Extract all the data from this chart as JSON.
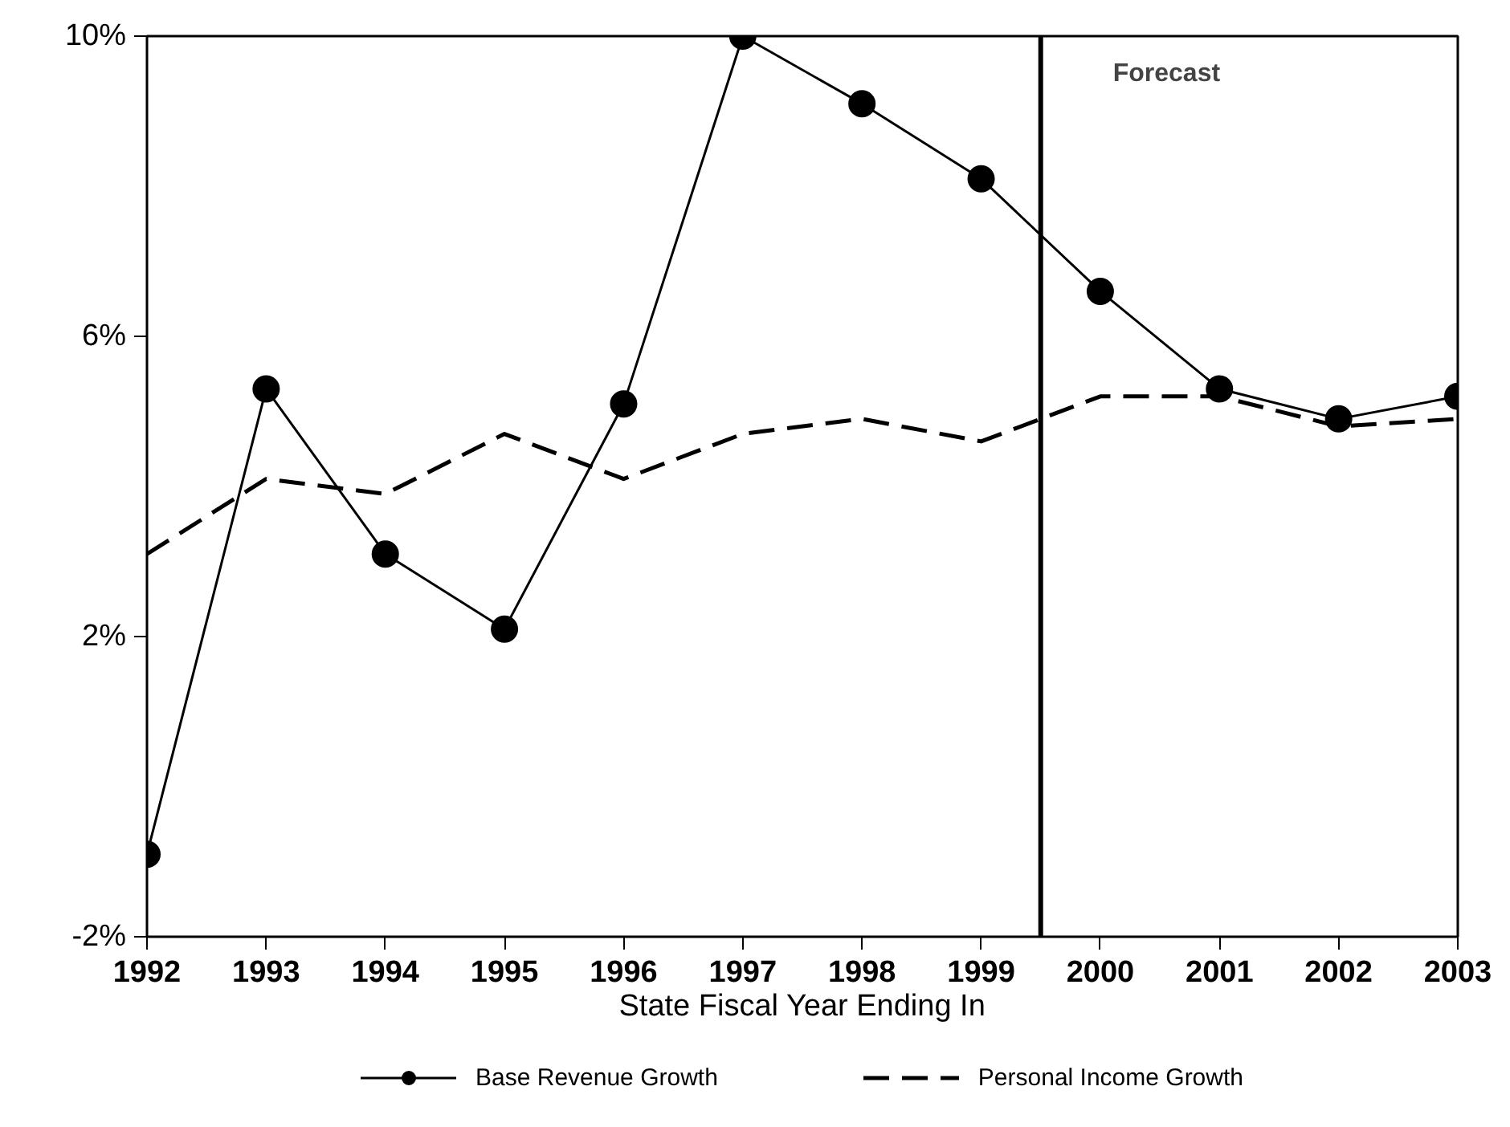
{
  "chart_data": {
    "type": "line",
    "xlabel": "State Fiscal Year Ending In",
    "x": [
      1992,
      1993,
      1994,
      1995,
      1996,
      1997,
      1998,
      1999,
      2000,
      2001,
      2002,
      2003
    ],
    "xlim": [
      1992,
      2003
    ],
    "xticks": [
      1992,
      1993,
      1994,
      1995,
      1996,
      1997,
      1998,
      1999,
      2000,
      2001,
      2002,
      2003
    ],
    "ylim": [
      -2,
      10
    ],
    "yticks": [
      {
        "value": -2,
        "label": "-2%"
      },
      {
        "value": 2,
        "label": "2%"
      },
      {
        "value": 6,
        "label": "6%"
      },
      {
        "value": 10,
        "label": "10%"
      }
    ],
    "series": [
      {
        "name": "Base Revenue Growth",
        "color": "#000000",
        "marker": "circle",
        "line_style": "solid",
        "values": [
          -0.9,
          5.3,
          3.1,
          2.1,
          5.1,
          10,
          9.1,
          8.1,
          6.6,
          5.3,
          4.9,
          5.2
        ]
      },
      {
        "name": "Personal Income Growth",
        "color": "#000000",
        "marker": "none",
        "line_style": "dashed",
        "values": [
          3.1,
          4.1,
          3.9,
          4.7,
          4.1,
          4.7,
          4.9,
          4.6,
          5.2,
          5.2,
          4.8,
          4.9
        ]
      }
    ],
    "ref_lines": [
      {
        "axis": "x",
        "value": 1999.5,
        "label": "Forecast",
        "color": "#000000"
      }
    ],
    "grid": false,
    "legend": "bottom"
  }
}
